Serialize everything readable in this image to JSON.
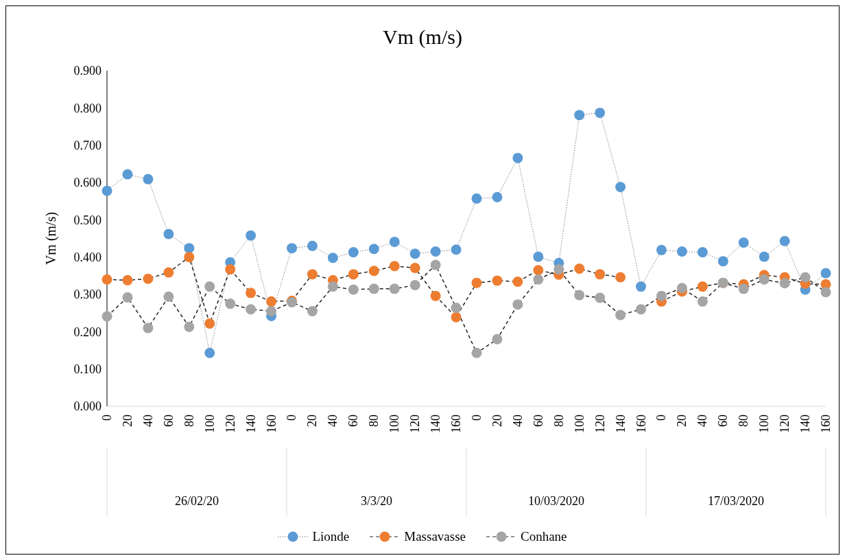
{
  "chart_data": {
    "type": "line",
    "title": "Vm (m/s)",
    "ylabel": "Vm (m/s)",
    "categories": [
      "0",
      "20",
      "40",
      "60",
      "80",
      "100",
      "120",
      "140",
      "160",
      "0",
      "20",
      "40",
      "60",
      "80",
      "100",
      "120",
      "140",
      "160",
      "0",
      "20",
      "40",
      "60",
      "80",
      "100",
      "120",
      "140",
      "160",
      "0",
      "20",
      "40",
      "60",
      "80",
      "100",
      "120",
      "140",
      "160"
    ],
    "annotations": [
      "26/02/20",
      "3/3/20",
      "10/03/2020",
      "17/03/2020"
    ],
    "series": [
      {
        "name": "Lionde",
        "color": "#5b9bd5",
        "line_style": "dotted",
        "values": [
          0.578,
          0.622,
          0.609,
          0.462,
          0.424,
          0.143,
          0.386,
          0.458,
          0.242,
          0.424,
          0.43,
          0.398,
          0.413,
          0.422,
          0.441,
          0.409,
          0.415,
          0.42,
          0.557,
          0.561,
          0.666,
          0.401,
          0.384,
          0.781,
          0.787,
          0.588,
          0.321,
          0.419,
          0.415,
          0.413,
          0.389,
          0.439,
          0.401,
          0.443,
          0.313,
          0.357
        ]
      },
      {
        "name": "Massavasse",
        "color": "#ed7d31",
        "line_style": "dashed",
        "values": [
          0.34,
          0.338,
          0.342,
          0.359,
          0.4,
          0.222,
          0.367,
          0.304,
          0.281,
          0.283,
          0.354,
          0.338,
          0.354,
          0.363,
          0.376,
          0.371,
          0.296,
          0.239,
          0.331,
          0.337,
          0.334,
          0.365,
          0.353,
          0.369,
          0.354,
          0.346,
          null,
          0.281,
          0.308,
          0.321,
          0.331,
          0.327,
          0.352,
          0.346,
          0.329,
          0.327
        ]
      },
      {
        "name": "Conhane",
        "color": "#a5a5a5",
        "line_style": "dashed",
        "values": [
          0.241,
          0.292,
          0.21,
          0.294,
          0.213,
          0.321,
          0.275,
          0.26,
          0.255,
          0.279,
          0.255,
          0.321,
          0.313,
          0.315,
          0.315,
          0.325,
          0.379,
          0.264,
          0.143,
          0.18,
          0.273,
          0.34,
          0.367,
          0.298,
          0.291,
          0.245,
          0.26,
          0.296,
          0.317,
          0.281,
          0.331,
          0.315,
          0.34,
          0.33,
          0.346,
          0.306
        ]
      }
    ],
    "ylim": [
      0,
      0.9
    ],
    "yticks": [
      {
        "value": 0,
        "label": "0.000"
      },
      {
        "value": 0.1,
        "label": "0.100"
      },
      {
        "value": 0.2,
        "label": "0.200"
      },
      {
        "value": 0.3,
        "label": "0.300"
      },
      {
        "value": 0.4,
        "label": "0.400"
      },
      {
        "value": 0.5,
        "label": "0.500"
      },
      {
        "value": 0.6,
        "label": "0.600"
      },
      {
        "value": 0.7,
        "label": "0.700"
      },
      {
        "value": 0.8,
        "label": "0.800"
      },
      {
        "value": 0.9,
        "label": "0.900"
      }
    ],
    "grid": false,
    "legend": "bottom",
    "marker": "circle"
  }
}
